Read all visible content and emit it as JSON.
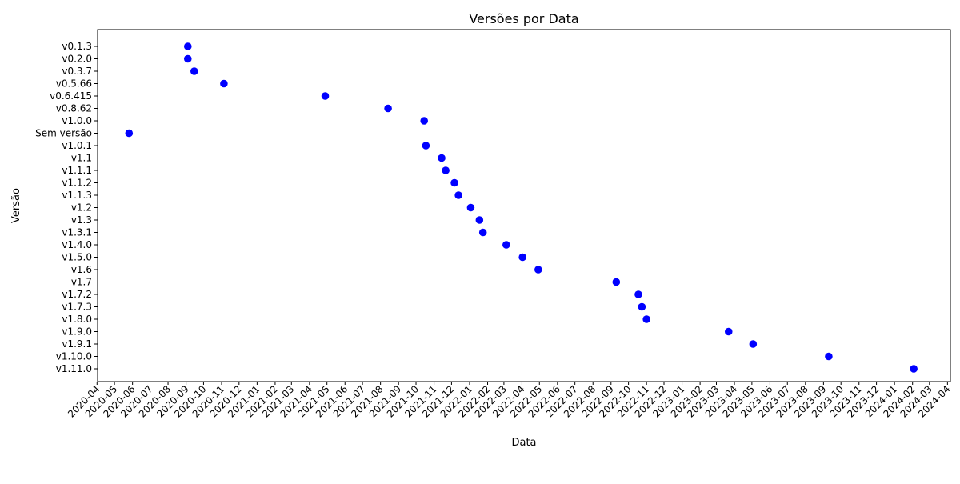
{
  "chart_data": {
    "type": "scatter",
    "title": "Versões por Data",
    "xlabel": "Data",
    "ylabel": "Versão",
    "marker_color": "#0000ff",
    "x_ticks": [
      "2020-04",
      "2020-05",
      "2020-06",
      "2020-07",
      "2020-08",
      "2020-09",
      "2020-10",
      "2020-11",
      "2020-12",
      "2021-01",
      "2021-02",
      "2021-03",
      "2021-04",
      "2021-05",
      "2021-06",
      "2021-07",
      "2021-08",
      "2021-09",
      "2021-10",
      "2021-11",
      "2021-12",
      "2022-01",
      "2022-02",
      "2022-03",
      "2022-04",
      "2022-05",
      "2022-06",
      "2022-07",
      "2022-08",
      "2022-09",
      "2022-10",
      "2022-11",
      "2022-12",
      "2023-01",
      "2023-02",
      "2023-03",
      "2023-04",
      "2023-05",
      "2023-06",
      "2023-07",
      "2023-08",
      "2023-09",
      "2023-10",
      "2023-11",
      "2023-12",
      "2024-01",
      "2024-02",
      "2024-03",
      "2024-04"
    ],
    "y_categories": [
      "v0.1.3",
      "v0.2.0",
      "v0.3.7",
      "v0.5.66",
      "v0.6.415",
      "v0.8.62",
      "v1.0.0",
      "Sem versão",
      "v1.0.1",
      "v1.1",
      "v1.1.1",
      "v1.1.2",
      "v1.1.3",
      "v1.2",
      "v1.3",
      "v1.3.1",
      "v1.4.0",
      "v1.5.0",
      "v1.6",
      "v1.7",
      "v1.7.2",
      "v1.7.3",
      "v1.8.0",
      "v1.9.0",
      "v1.9.1",
      "v1.10.0",
      "v1.11.0"
    ],
    "points": [
      {
        "x": "2020-09-04",
        "y": "v0.1.3"
      },
      {
        "x": "2020-09-04",
        "y": "v0.2.0"
      },
      {
        "x": "2020-09-15",
        "y": "v0.3.7"
      },
      {
        "x": "2020-11-05",
        "y": "v0.5.66"
      },
      {
        "x": "2021-04-28",
        "y": "v0.6.415"
      },
      {
        "x": "2021-08-14",
        "y": "v0.8.62"
      },
      {
        "x": "2021-10-15",
        "y": "v1.0.0"
      },
      {
        "x": "2020-05-26",
        "y": "Sem versão"
      },
      {
        "x": "2021-10-18",
        "y": "v1.0.1"
      },
      {
        "x": "2021-11-14",
        "y": "v1.1"
      },
      {
        "x": "2021-11-21",
        "y": "v1.1.1"
      },
      {
        "x": "2021-12-06",
        "y": "v1.1.2"
      },
      {
        "x": "2021-12-13",
        "y": "v1.1.3"
      },
      {
        "x": "2022-01-03",
        "y": "v1.2"
      },
      {
        "x": "2022-01-18",
        "y": "v1.3"
      },
      {
        "x": "2022-01-24",
        "y": "v1.3.1"
      },
      {
        "x": "2022-03-05",
        "y": "v1.4.0"
      },
      {
        "x": "2022-04-02",
        "y": "v1.5.0"
      },
      {
        "x": "2022-04-29",
        "y": "v1.6"
      },
      {
        "x": "2022-09-10",
        "y": "v1.7"
      },
      {
        "x": "2022-10-18",
        "y": "v1.7.2"
      },
      {
        "x": "2022-10-24",
        "y": "v1.7.3"
      },
      {
        "x": "2022-11-01",
        "y": "v1.8.0"
      },
      {
        "x": "2023-03-22",
        "y": "v1.9.0"
      },
      {
        "x": "2023-05-03",
        "y": "v1.9.1"
      },
      {
        "x": "2023-09-10",
        "y": "v1.10.0"
      },
      {
        "x": "2024-02-03",
        "y": "v1.11.0"
      }
    ],
    "xlim": [
      "2020-04-02",
      "2024-04-06"
    ],
    "grid": false,
    "legend": false
  }
}
